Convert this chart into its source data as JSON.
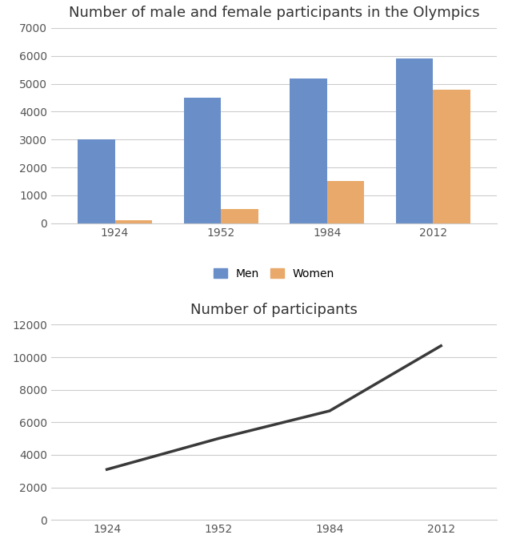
{
  "years": [
    "1924",
    "1952",
    "1984",
    "2012"
  ],
  "men": [
    3000,
    4500,
    5200,
    5900
  ],
  "women": [
    100,
    500,
    1500,
    4800
  ],
  "total": [
    3100,
    5000,
    6700,
    10700
  ],
  "bar_color_men": "#6a8fc8",
  "bar_color_women": "#e8a96a",
  "line_color": "#3a3a3a",
  "title_bar": "Number of male and female participants in the Olympics",
  "title_line": "Number of participants",
  "bar_ylim": [
    0,
    7000
  ],
  "bar_yticks": [
    0,
    1000,
    2000,
    3000,
    4000,
    5000,
    6000,
    7000
  ],
  "line_ylim": [
    0,
    12000
  ],
  "line_yticks": [
    0,
    2000,
    4000,
    6000,
    8000,
    10000,
    12000
  ],
  "legend_labels": [
    "Men",
    "Women"
  ],
  "background_color": "#ffffff",
  "grid_color": "#cccccc",
  "bar_width": 0.35,
  "title_fontsize": 13,
  "tick_fontsize": 10,
  "legend_fontsize": 10,
  "line_width": 2.5
}
